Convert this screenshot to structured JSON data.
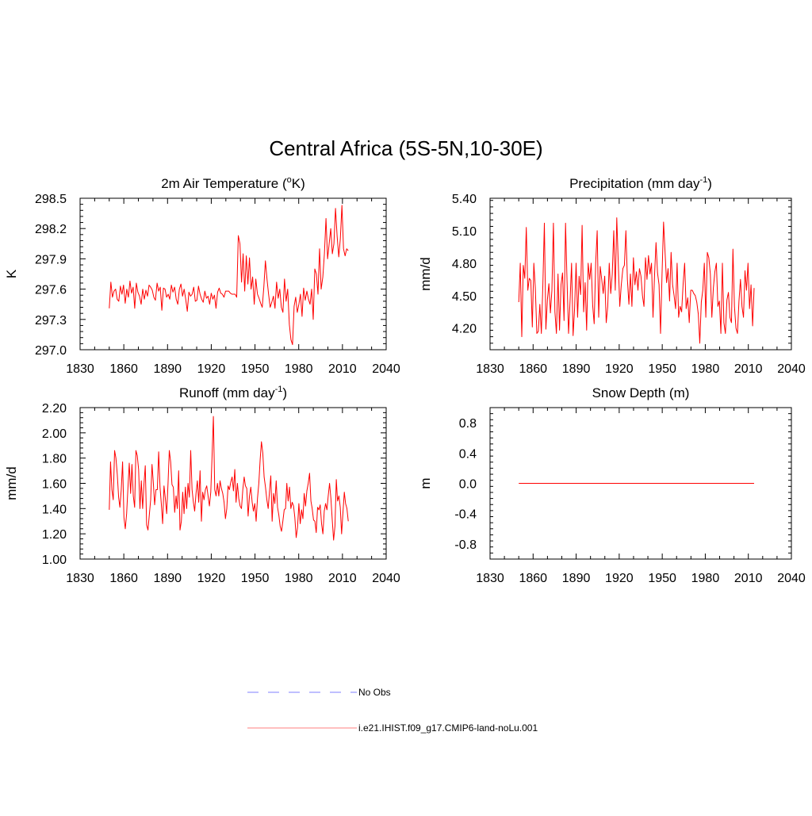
{
  "page_title": "Central Africa (5S-5N,10-30E)",
  "legend": {
    "items": [
      {
        "label": "No Obs",
        "color": "#9999ff",
        "style": "dashed"
      },
      {
        "label": "i.e21.IHIST.f09_g17.CMIP6-land-noLu.001",
        "color": "#ff9999",
        "style": "solid"
      }
    ]
  },
  "chart_data": [
    {
      "type": "line",
      "title": "2m Air Temperature (°K)",
      "title_text": "2m Air Temperature (",
      "title_sup": "o",
      "title_tail": "K)",
      "ylabel": "K",
      "xlim": [
        1830,
        2040
      ],
      "ylim": [
        297.0,
        298.5
      ],
      "xticks": [
        "1830",
        "1860",
        "1890",
        "1920",
        "1950",
        "1980",
        "2010",
        "2040"
      ],
      "yticks": [
        "297.0",
        "297.3",
        "297.6",
        "297.9",
        "298.2",
        "298.5"
      ],
      "series": [
        {
          "color": "#ff0000",
          "x_start": 1850,
          "values": [
            297.41,
            297.67,
            297.52,
            297.58,
            297.6,
            297.5,
            297.48,
            297.63,
            297.55,
            297.64,
            297.46,
            297.6,
            297.52,
            297.68,
            297.56,
            297.62,
            297.41,
            297.66,
            297.57,
            297.53,
            297.45,
            297.6,
            297.5,
            297.59,
            297.53,
            297.64,
            297.62,
            297.59,
            297.52,
            297.49,
            297.66,
            297.58,
            297.62,
            297.39,
            297.61,
            297.6,
            297.52,
            297.55,
            297.5,
            297.64,
            297.57,
            297.62,
            297.5,
            297.45,
            297.6,
            297.65,
            297.53,
            297.6,
            297.5,
            297.38,
            297.57,
            297.53,
            297.55,
            297.62,
            297.48,
            297.49,
            297.63,
            297.55,
            297.5,
            297.47,
            297.58,
            297.51,
            297.53,
            297.45,
            297.56,
            297.5,
            297.54,
            297.41,
            297.57,
            297.61,
            297.56,
            297.55,
            297.52,
            297.58,
            297.58,
            297.58,
            297.56,
            297.55,
            297.55,
            297.55,
            297.52,
            298.13,
            298.05,
            297.67,
            297.95,
            297.58,
            297.93,
            297.65,
            297.91,
            297.6,
            297.72,
            297.45,
            297.7,
            297.55,
            297.51,
            297.46,
            297.42,
            297.62,
            297.88,
            297.7,
            297.55,
            297.42,
            297.47,
            297.53,
            297.41,
            297.67,
            297.51,
            297.6,
            297.42,
            297.37,
            297.7,
            297.48,
            297.6,
            297.25,
            297.1,
            297.05,
            297.43,
            297.52,
            297.37,
            297.45,
            297.55,
            297.33,
            297.61,
            297.49,
            297.58,
            297.5,
            297.45,
            297.6,
            297.3,
            297.8,
            297.75,
            297.55,
            298.0,
            297.6,
            297.72,
            297.95,
            298.3,
            297.9,
            298.05,
            298.2,
            297.95,
            298.05,
            298.4,
            298.13,
            297.92,
            298.1,
            298.43,
            298.0,
            297.93,
            298.0,
            297.98
          ],
          "overlay_values": [
            297.72,
            297.58,
            297.52,
            297.52,
            297.55,
            297.53,
            297.56,
            297.8
          ]
        }
      ]
    },
    {
      "type": "line",
      "title": "Precipitation (mm day-1)",
      "title_text": "Precipitation (mm day",
      "title_sup": "-1",
      "title_tail": ")",
      "ylabel": "mm/d",
      "xlim": [
        1830,
        2040
      ],
      "ylim": [
        4.0,
        5.4
      ],
      "xticks": [
        "1830",
        "1860",
        "1890",
        "1920",
        "1950",
        "1980",
        "2010",
        "2040"
      ],
      "yticks": [
        "4.20",
        "4.50",
        "4.80",
        "5.10",
        "5.40"
      ],
      "series": [
        {
          "color": "#ff0000",
          "x_start": 1850,
          "values": [
            4.44,
            4.8,
            4.12,
            4.78,
            4.66,
            5.13,
            4.55,
            4.66,
            4.64,
            4.21,
            4.8,
            4.57,
            4.15,
            4.17,
            4.42,
            4.15,
            4.6,
            5.17,
            4.19,
            4.46,
            4.61,
            4.34,
            4.55,
            5.17,
            4.35,
            4.15,
            4.7,
            4.18,
            4.6,
            4.71,
            4.27,
            5.17,
            4.63,
            4.15,
            4.45,
            4.8,
            4.13,
            4.38,
            4.8,
            4.3,
            4.68,
            4.51,
            5.15,
            4.35,
            4.62,
            4.18,
            4.8,
            4.65,
            4.8,
            4.41,
            4.24,
            4.8,
            5.1,
            4.3,
            4.77,
            4.65,
            4.52,
            4.68,
            4.25,
            4.4,
            4.8,
            4.52,
            4.7,
            5.1,
            4.55,
            5.22,
            4.8,
            4.4,
            4.6,
            4.75,
            4.78,
            5.1,
            4.65,
            4.42,
            4.7,
            4.4,
            4.85,
            4.6,
            4.72,
            4.55,
            4.75,
            4.68,
            4.5,
            4.4,
            4.85,
            4.65,
            4.87,
            4.7,
            4.8,
            4.3,
            4.68,
            4.99,
            4.71,
            4.6,
            4.15,
            4.7,
            5.18,
            4.9,
            4.62,
            4.75,
            4.45,
            4.9,
            4.6,
            4.5,
            4.38,
            4.8,
            4.3,
            4.4,
            4.35,
            4.61,
            4.8,
            4.38,
            4.48,
            4.25,
            4.55,
            4.55,
            4.52,
            4.5,
            4.44,
            4.33,
            4.06,
            4.44,
            4.55,
            4.8,
            4.3,
            4.9,
            4.85,
            4.7,
            4.3,
            4.57,
            4.72,
            4.8,
            4.4,
            4.45,
            4.15,
            4.8,
            4.25,
            4.15,
            4.46,
            4.53,
            4.3,
            4.25,
            4.93,
            4.4,
            4.2,
            4.15,
            4.45,
            4.65,
            4.4,
            4.3,
            4.73,
            4.55,
            4.8,
            4.38,
            4.6,
            4.22,
            4.57
          ]
        }
      ]
    },
    {
      "type": "line",
      "title": "Runoff (mm day-1)",
      "title_text": "Runoff (mm day",
      "title_sup": "-1",
      "title_tail": ")",
      "ylabel": "mm/d",
      "xlim": [
        1830,
        2040
      ],
      "ylim": [
        1.0,
        2.2
      ],
      "xticks": [
        "1830",
        "1860",
        "1890",
        "1920",
        "1950",
        "1980",
        "2010",
        "2040"
      ],
      "yticks": [
        "1.00",
        "1.20",
        "1.40",
        "1.60",
        "1.80",
        "2.00",
        "2.20"
      ],
      "series": [
        {
          "color": "#ff0000",
          "x_start": 1850,
          "values": [
            1.39,
            1.77,
            1.55,
            1.47,
            1.86,
            1.8,
            1.67,
            1.49,
            1.41,
            1.55,
            1.77,
            1.33,
            1.24,
            1.36,
            1.56,
            1.76,
            1.52,
            1.75,
            1.5,
            1.41,
            1.86,
            1.82,
            1.71,
            1.4,
            1.62,
            1.4,
            1.59,
            1.74,
            1.27,
            1.23,
            1.35,
            1.47,
            1.75,
            1.61,
            1.43,
            1.55,
            1.55,
            1.85,
            1.57,
            1.44,
            1.28,
            1.58,
            1.48,
            1.36,
            1.6,
            1.86,
            1.77,
            1.59,
            1.57,
            1.37,
            1.5,
            1.4,
            1.7,
            1.23,
            1.3,
            1.53,
            1.36,
            1.57,
            1.4,
            1.6,
            1.49,
            1.86,
            1.55,
            1.45,
            1.38,
            1.52,
            1.62,
            1.45,
            1.7,
            1.3,
            1.53,
            1.47,
            1.55,
            1.58,
            1.5,
            1.42,
            1.53,
            1.81,
            2.13,
            1.55,
            1.5,
            1.6,
            1.5,
            1.62,
            1.56,
            1.52,
            1.45,
            1.32,
            1.4,
            1.58,
            1.55,
            1.61,
            1.65,
            1.54,
            1.71,
            1.45,
            1.6,
            1.48,
            1.42,
            1.4,
            1.55,
            1.65,
            1.58,
            1.56,
            1.34,
            1.5,
            1.57,
            1.45,
            1.38,
            1.44,
            1.3,
            1.48,
            1.6,
            1.79,
            1.93,
            1.84,
            1.65,
            1.57,
            1.47,
            1.4,
            1.53,
            1.66,
            1.3,
            1.52,
            1.44,
            1.62,
            1.41,
            1.35,
            1.26,
            1.22,
            1.3,
            1.39,
            1.4,
            1.6,
            1.46,
            1.57,
            1.4,
            1.45,
            1.42,
            1.33,
            1.17,
            1.25,
            1.44,
            1.28,
            1.39,
            1.32,
            1.52,
            1.42,
            1.54,
            1.6,
            1.68,
            1.46,
            1.4,
            1.31,
            1.3,
            1.21,
            1.41,
            1.39,
            1.43,
            1.28,
            1.2,
            1.38,
            1.44,
            1.39,
            1.5,
            1.6,
            1.48,
            1.31,
            1.15,
            1.26,
            1.63,
            1.46,
            1.5,
            1.41,
            1.2,
            1.37,
            1.53,
            1.44,
            1.4,
            1.3
          ]
        }
      ]
    },
    {
      "type": "line",
      "title": "Snow Depth (m)",
      "title_text": "Snow Depth (m)",
      "title_sup": "",
      "title_tail": "",
      "ylabel": "m",
      "xlim": [
        1830,
        2040
      ],
      "ylim": [
        -1.0,
        1.0
      ],
      "xticks": [
        "1830",
        "1860",
        "1890",
        "1920",
        "1950",
        "1980",
        "2010",
        "2040"
      ],
      "yticks": [
        "-0.8",
        "-0.4",
        "0.0",
        "0.4",
        "0.8"
      ],
      "series": [
        {
          "color": "#ff0000",
          "x_start": 1850,
          "x_end": 2014,
          "constant": 0.0
        }
      ]
    }
  ]
}
